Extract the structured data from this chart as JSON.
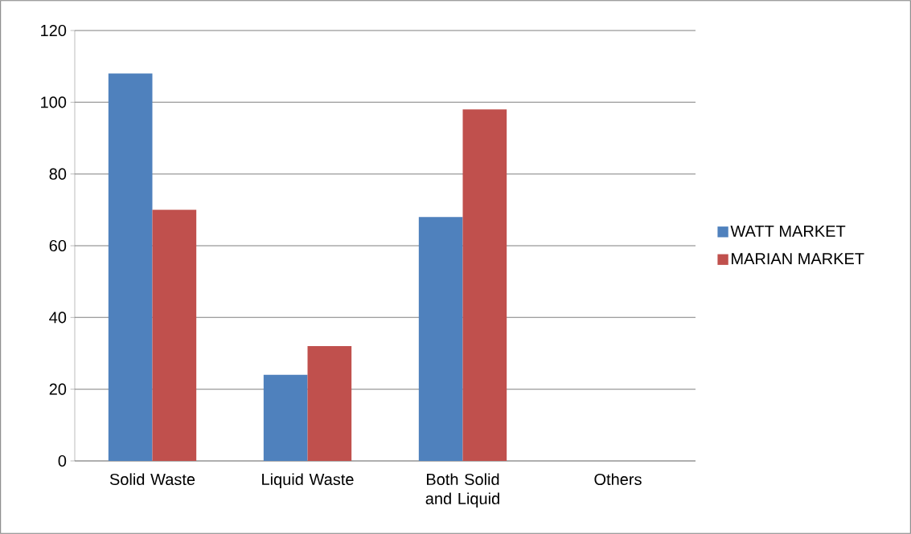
{
  "chart_data": {
    "type": "bar",
    "categories": [
      "Solid Waste",
      "Liquid Waste",
      "Both Solid and Liquid",
      "Others"
    ],
    "series": [
      {
        "name": "WATT MARKET",
        "color": "#4f81bd",
        "values": [
          108,
          24,
          68,
          0
        ]
      },
      {
        "name": "MARIAN MARKET",
        "color": "#c0504d",
        "values": [
          70,
          32,
          98,
          0
        ]
      }
    ],
    "ylim": [
      0,
      120
    ],
    "yticks": [
      0,
      20,
      40,
      60,
      80,
      100,
      120
    ],
    "grid": "y",
    "legend": "right"
  }
}
